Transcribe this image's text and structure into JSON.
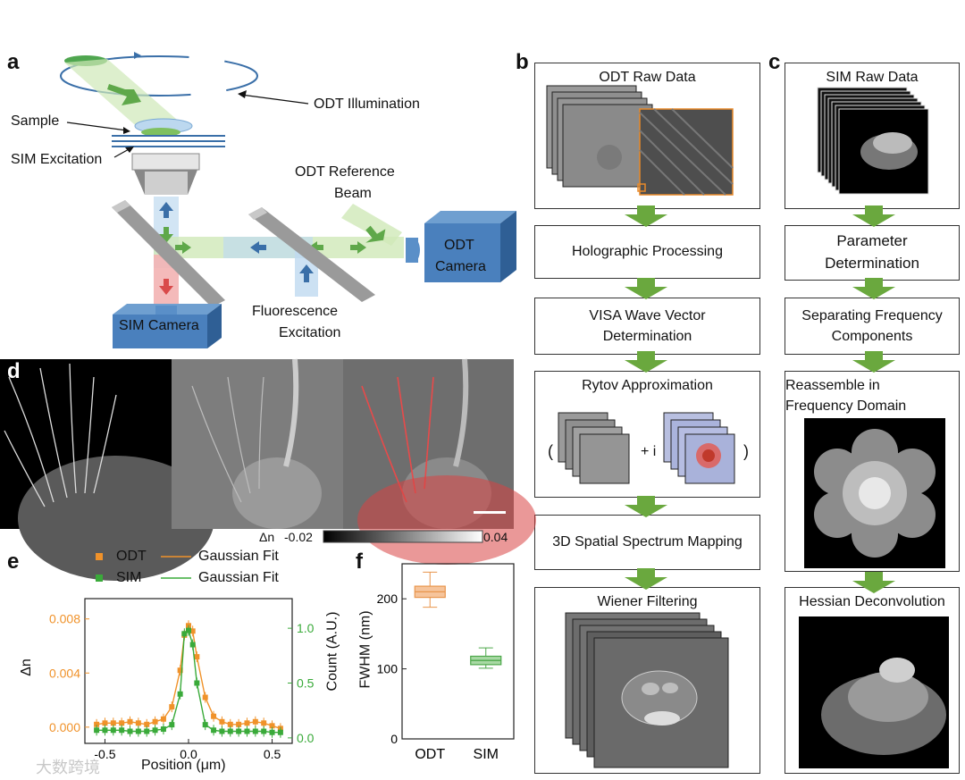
{
  "panels": {
    "a": "a",
    "b": "b",
    "c": "c",
    "d": "d",
    "e": "e",
    "f": "f"
  },
  "panel_a": {
    "odt_illumination": "ODT Illumination",
    "sample": "Sample",
    "sim_excitation": "SIM Excitation",
    "odt_reference_line1": "ODT Reference",
    "odt_reference_line2": "Beam",
    "odt_camera_line1": "ODT",
    "odt_camera_line2": "Camera",
    "sim_camera": "SIM Camera",
    "fluor_line1": "Fluorescence",
    "fluor_line2": "Excitation"
  },
  "panel_b": {
    "steps": [
      "ODT Raw Data",
      "Holographic Processing",
      "VISA Wave Vector",
      "Determination",
      "Rytov Approximation",
      "3D Spatial Spectrum Mapping",
      "Wiener Filtering"
    ],
    "rytov_open": "(",
    "rytov_plus": "+ i",
    "rytov_close": ")"
  },
  "panel_c": {
    "steps": [
      "SIM Raw Data",
      "Parameter",
      "Determination",
      "Separating Frequency",
      "Components",
      "Reassemble in",
      "Frequency Domain",
      "Hessian Deconvolution"
    ]
  },
  "panel_d": {
    "colorbar_label": "Δn",
    "colorbar_min": "-0.02",
    "colorbar_max": "0.04"
  },
  "chart_data": [
    {
      "type": "line",
      "panel": "e",
      "xlabel": "Position (μm)",
      "ylabel_left": "Δn",
      "ylabel_right": "Count (A.U.)",
      "xlim": [
        -0.62,
        0.62
      ],
      "ylim_left": [
        -0.0012,
        0.0095
      ],
      "ylim_right": [
        -0.05,
        1.27
      ],
      "x_ticks": [
        "-0.5",
        "0.0",
        "0.5"
      ],
      "y_left_ticks": [
        "0.000",
        "0.004",
        "0.008"
      ],
      "y_right_ticks": [
        "0.0",
        "0.5",
        "1.0"
      ],
      "legend": [
        "ODT",
        "Gaussian Fit",
        "SIM",
        "Gaussian Fit"
      ],
      "colors": {
        "odt": "#f0922a",
        "sim": "#3aaa3a"
      },
      "series": [
        {
          "name": "ODT",
          "axis": "left",
          "x": [
            -0.55,
            -0.5,
            -0.45,
            -0.4,
            -0.35,
            -0.3,
            -0.25,
            -0.2,
            -0.15,
            -0.1,
            -0.05,
            -0.025,
            0,
            0.025,
            0.05,
            0.1,
            0.15,
            0.2,
            0.25,
            0.3,
            0.35,
            0.4,
            0.45,
            0.5,
            0.55
          ],
          "y": [
            0.0002,
            0.0003,
            0.0003,
            0.0003,
            0.0004,
            0.0003,
            0.0002,
            0.0004,
            0.0006,
            0.0015,
            0.0042,
            0.0068,
            0.0075,
            0.0071,
            0.0052,
            0.0022,
            0.0008,
            0.0004,
            0.0002,
            0.0002,
            0.0003,
            0.0004,
            0.0003,
            0.0001,
            -0.0001
          ]
        },
        {
          "name": "SIM",
          "axis": "right",
          "x": [
            -0.55,
            -0.5,
            -0.45,
            -0.4,
            -0.35,
            -0.3,
            -0.25,
            -0.2,
            -0.15,
            -0.1,
            -0.05,
            -0.025,
            0,
            0.025,
            0.05,
            0.1,
            0.15,
            0.2,
            0.25,
            0.3,
            0.35,
            0.4,
            0.45,
            0.5,
            0.55
          ],
          "y": [
            0.07,
            0.07,
            0.07,
            0.07,
            0.06,
            0.06,
            0.06,
            0.07,
            0.08,
            0.12,
            0.4,
            0.95,
            0.98,
            0.85,
            0.5,
            0.12,
            0.07,
            0.06,
            0.06,
            0.06,
            0.06,
            0.06,
            0.06,
            0.05,
            0.05
          ]
        }
      ]
    },
    {
      "type": "box",
      "panel": "f",
      "ylabel": "FWHM (nm)",
      "ylim": [
        0,
        250
      ],
      "y_ticks": [
        "0",
        "100",
        "200"
      ],
      "categories": [
        "ODT",
        "SIM"
      ],
      "boxes": [
        {
          "category": "ODT",
          "min": 188,
          "q1": 202,
          "median": 210,
          "q3": 218,
          "max": 238,
          "color": "#f6c49b",
          "edge": "#e8954c"
        },
        {
          "category": "SIM",
          "min": 101,
          "q1": 106,
          "median": 112,
          "q3": 118,
          "max": 130,
          "color": "#a8d9a4",
          "edge": "#4da84a"
        }
      ]
    }
  ],
  "watermark": "大数跨境"
}
